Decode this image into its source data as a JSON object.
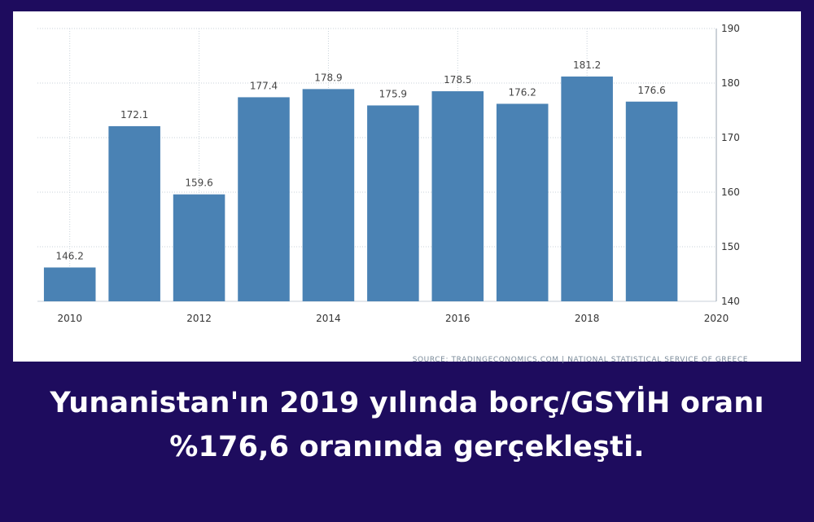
{
  "chart_data": {
    "type": "bar",
    "x": [
      2010,
      2011,
      2012,
      2013,
      2014,
      2015,
      2016,
      2017,
      2018,
      2019
    ],
    "values": [
      146.2,
      172.1,
      159.6,
      177.4,
      178.9,
      175.9,
      178.5,
      176.2,
      181.2,
      176.6
    ],
    "data_labels": [
      "146.2",
      "172.1",
      "159.6",
      "177.4",
      "178.9",
      "175.9",
      "178.5",
      "176.2",
      "181.2",
      "176.6"
    ],
    "xlim": [
      2009.5,
      2020
    ],
    "x_ticks": [
      "2010",
      "2012",
      "2014",
      "2016",
      "2018",
      "2020"
    ],
    "ylim": [
      140,
      190
    ],
    "y_ticks": [
      "140",
      "150",
      "160",
      "170",
      "180",
      "190"
    ],
    "y_axis_side": "right",
    "grid": true,
    "bar_color": "#4a82b4",
    "source": "SOURCE: TRADINGECONOMICS.COM | NATIONAL STATISTICAL SERVICE OF GREECE"
  },
  "caption": {
    "line1": "Yunanistan'ın 2019 yılında borç/GSYİH oranı",
    "line2": "%176,6 oranında gerçekleşti."
  },
  "colors": {
    "background": "#1e0c5e",
    "card": "#ffffff",
    "bar": "#4a82b4",
    "caption_text": "#ffffff"
  }
}
